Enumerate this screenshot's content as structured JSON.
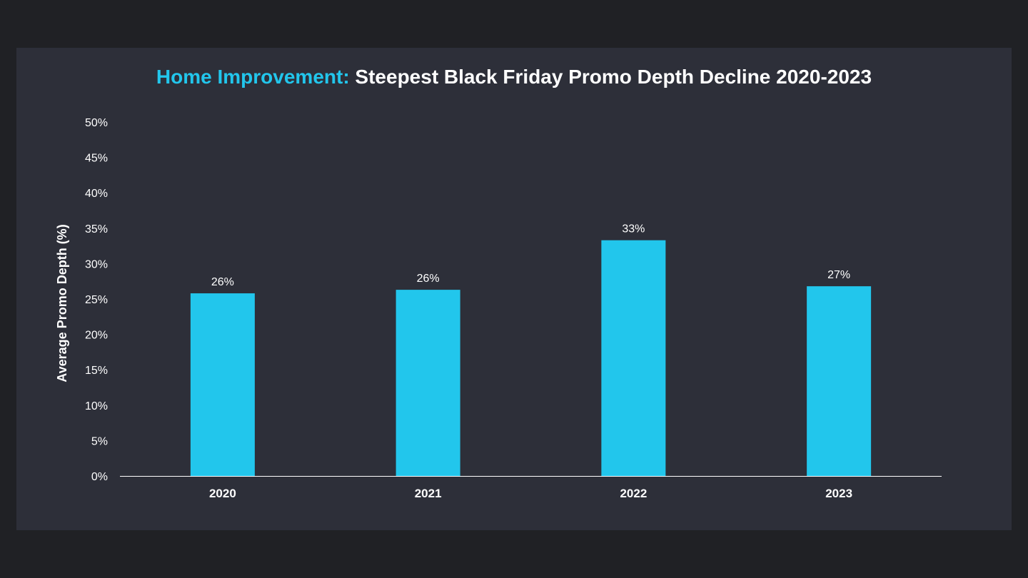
{
  "title": {
    "accent": "Home Improvement:",
    "rest": " Steepest Black Friday Promo Depth Decline 2020-2023"
  },
  "colors": {
    "page_background": "#202125",
    "slide_background": "#2d2f39",
    "accent": "#22c6ec",
    "bar": "#22c6ec",
    "text": "#ffffff",
    "axis_line": "#ffffff"
  },
  "chart_data": {
    "type": "bar",
    "title": "Home Improvement: Steepest Black Friday Promo Depth Decline 2020-2023",
    "xlabel": "",
    "ylabel": "Average Promo Depth (%)",
    "categories": [
      "2020",
      "2021",
      "2022",
      "2023"
    ],
    "values": [
      25.8,
      26.3,
      33.3,
      26.8
    ],
    "data_labels": [
      "26%",
      "26%",
      "33%",
      "27%"
    ],
    "ylim": [
      0,
      50
    ],
    "yticks": [
      0,
      5,
      10,
      15,
      20,
      25,
      30,
      35,
      40,
      45,
      50
    ],
    "ytick_labels": [
      "0%",
      "5%",
      "10%",
      "15%",
      "20%",
      "25%",
      "30%",
      "35%",
      "40%",
      "45%",
      "50%"
    ],
    "grid": false,
    "legend": "none"
  }
}
